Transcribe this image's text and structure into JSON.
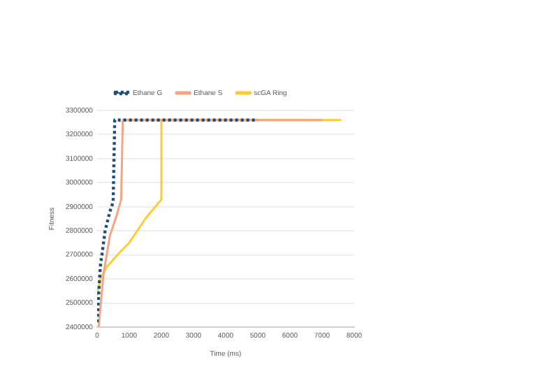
{
  "chart_data": {
    "type": "line",
    "xlabel": "Time (ms)",
    "ylabel": "Fitness",
    "xlim": [
      0,
      8000
    ],
    "xticks": [
      0,
      1000,
      2000,
      3000,
      4000,
      5000,
      6000,
      7000,
      8000
    ],
    "ylim": [
      2400000,
      3300000
    ],
    "yticks": [
      2400000,
      2500000,
      2600000,
      2700000,
      2800000,
      2900000,
      3000000,
      3100000,
      3200000,
      3300000
    ],
    "grid": "y",
    "legend": "top",
    "marker": "none",
    "series": [
      {
        "name": "Ethane G",
        "color": "#1f4e79",
        "line_style": "dotted",
        "x": [
          0,
          100,
          250,
          400,
          500,
          550,
          5000
        ],
        "values": [
          2420000,
          2650000,
          2800000,
          2880000,
          2920000,
          3260000,
          3260000
        ]
      },
      {
        "name": "Ethane S",
        "color": "#f4a582",
        "line_style": "solid",
        "x": [
          50,
          200,
          400,
          600,
          750,
          800,
          7000
        ],
        "values": [
          2400000,
          2620000,
          2780000,
          2860000,
          2930000,
          3260000,
          3260000
        ]
      },
      {
        "name": "scGA Ring",
        "color": "#ffcc33",
        "line_style": "solid",
        "x": [
          0,
          100,
          300,
          700,
          1000,
          1500,
          2000,
          2000,
          7600
        ],
        "values": [
          2530000,
          2600000,
          2650000,
          2710000,
          2750000,
          2850000,
          2930000,
          3260000,
          3260000
        ]
      }
    ]
  }
}
